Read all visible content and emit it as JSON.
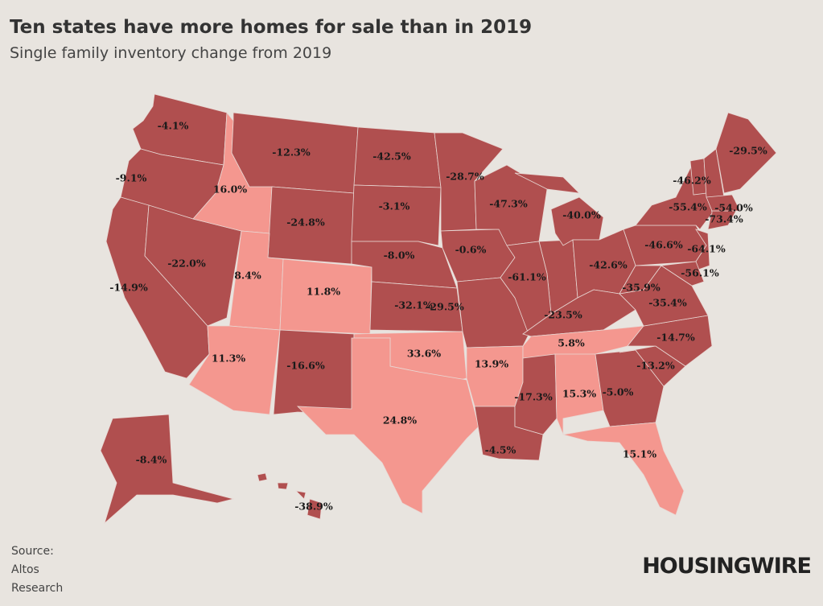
{
  "chart_data": {
    "type": "choropleth",
    "title": "Ten states have more homes for sale than in 2019",
    "subtitle": "Single family inventory change from 2019",
    "values": [
      -4.1,
      -9.1,
      -14.9,
      -22.0,
      16.0,
      -12.3,
      -24.8,
      8.4,
      11.8,
      11.3,
      -16.6,
      -42.5,
      -3.1,
      -8.0,
      -32.1,
      33.6,
      24.8,
      -28.7,
      -0.6,
      -29.5,
      13.9,
      -4.5,
      -47.3,
      -61.1,
      -40.0,
      -42.6,
      -23.5,
      5.8,
      -17.3,
      15.3,
      -5.0,
      15.1,
      -13.2,
      -14.7,
      -35.4,
      -35.9,
      -46.6,
      -55.4,
      -46.2,
      -54.0,
      -29.5,
      -73.4,
      -64.1,
      -56.1,
      -8.4,
      -38.9
    ],
    "value_labels": [
      "-4.1%",
      "-9.1%",
      "-14.9%",
      "-22.0%",
      "16.0%",
      "-12.3%",
      "-24.8%",
      "8.4%",
      "11.8%",
      "11.3%",
      "-16.6%",
      "-42.5%",
      "-3.1%",
      "-8.0%",
      "-32.1%",
      "33.6%",
      "24.8%",
      "-28.7%",
      "-0.6%",
      "-29.5%",
      "13.9%",
      "-4.5%",
      "-47.3%",
      "-61.1%",
      "-40.0%",
      "-42.6%",
      "-23.5%",
      "5.8%",
      "-17.3%",
      "15.3%",
      "-5.0%",
      "15.1%",
      "-13.2%",
      "-14.7%",
      "-35.4%",
      "-35.9%",
      "-46.6%",
      "-55.4%",
      "-46.2%",
      "-54.0%",
      "-29.5%",
      "-73.4%",
      "-64.1%",
      "-56.1%",
      "-8.4%",
      "-38.9%"
    ],
    "increase_color": "#f4978f",
    "decrease_color": "#b04f4f"
  },
  "source": [
    "Source:",
    "Altos",
    "Research"
  ],
  "logo": "HOUSINGWIRE"
}
